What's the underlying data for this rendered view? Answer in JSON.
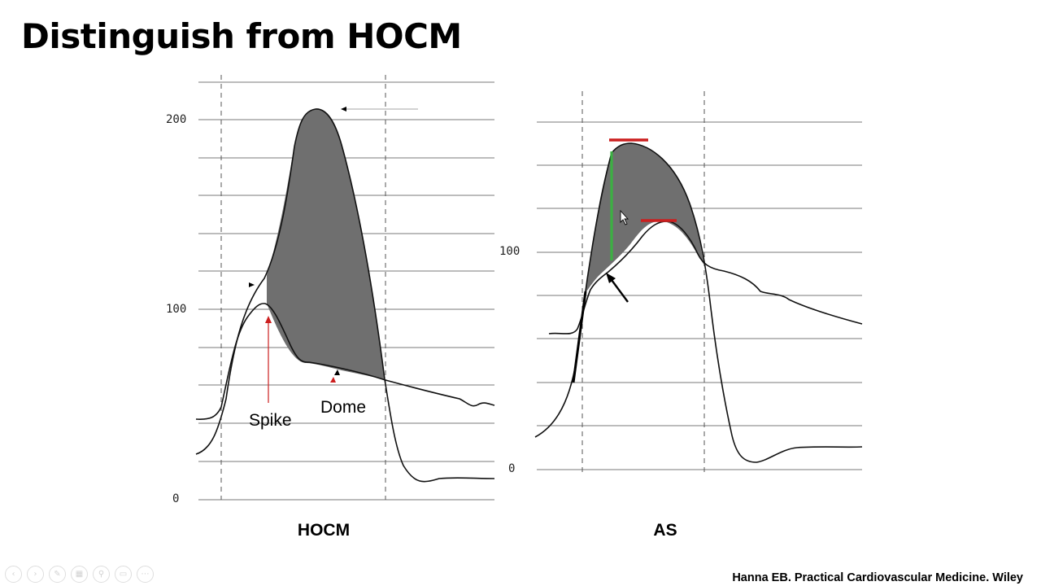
{
  "slide": {
    "title": "Distinguish from HOCM",
    "citation": "Hanna EB. Practical Cardiovascular Medicine. Wiley"
  },
  "hocm_panel": {
    "label": "HOCM",
    "y_ticks": [
      "200",
      "100",
      "0"
    ],
    "annotations": {
      "spike": "Spike",
      "dome": "Dome"
    }
  },
  "as_panel": {
    "label": "AS",
    "y_ticks": [
      "100",
      "0"
    ]
  },
  "colors": {
    "shade": "#6f6f6f",
    "red_marker": "#cc1f1f",
    "green_marker": "#3cb043",
    "grid": "#777777"
  },
  "toolbar": {
    "icons": [
      "prev-icon",
      "next-icon",
      "pen-icon",
      "slides-icon",
      "zoom-icon",
      "subtitles-icon",
      "more-icon"
    ],
    "glyphs": [
      "‹",
      "›",
      "✎",
      "▦",
      "⚲",
      "▭",
      "⋯"
    ]
  }
}
